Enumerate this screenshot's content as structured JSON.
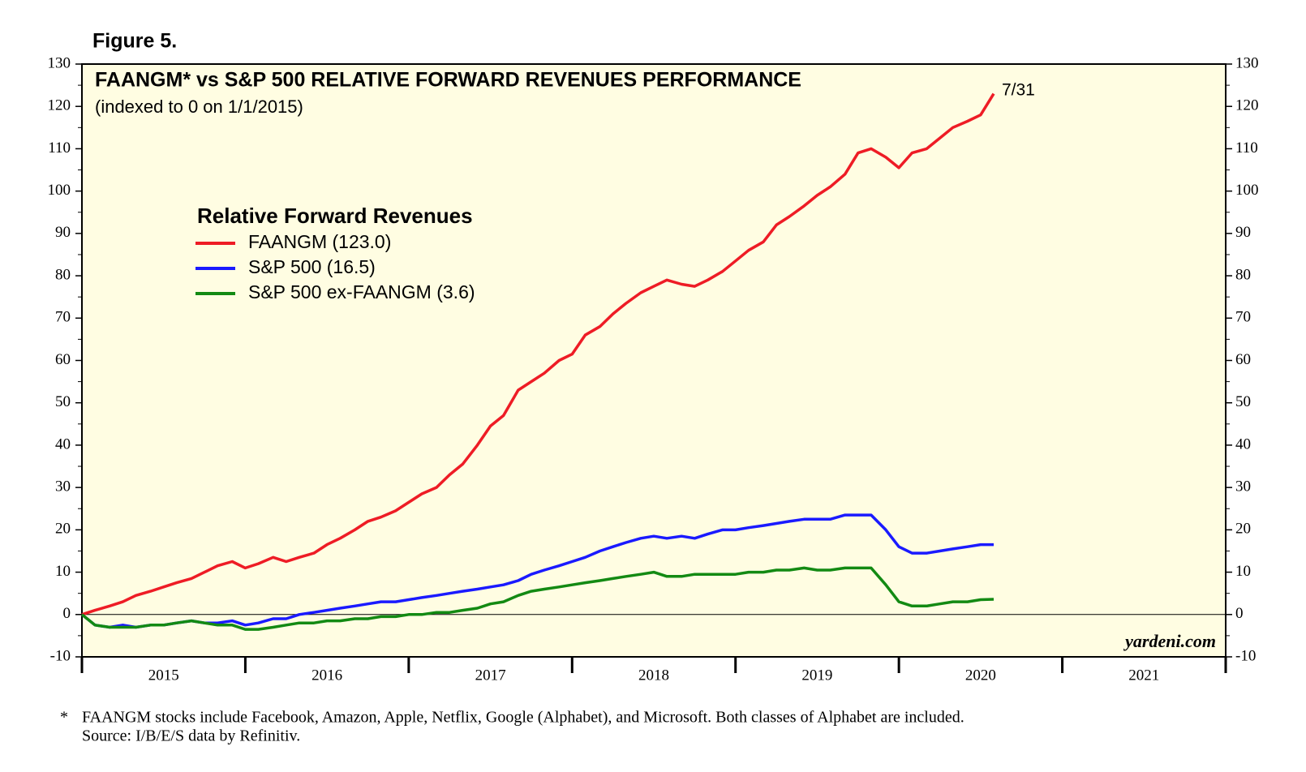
{
  "chart_data": {
    "type": "line",
    "figure_label": "Figure 5.",
    "title": "FAANGM* vs S&P 500 RELATIVE FORWARD REVENUES PERFORMANCE",
    "subtitle": "(indexed to 0 on 1/1/2015)",
    "legend_title": "Relative Forward Revenues",
    "annotation": "7/31",
    "watermark": "yardeni.com",
    "footnote": [
      "*",
      "FAANGM stocks include Facebook, Amazon, Apple, Netflix, Google (Alphabet), and Microsoft. Both classes of Alphabet are included.",
      "Source: I/B/E/S data by Refinitiv."
    ],
    "x": [
      2015,
      2015.08,
      2015.17,
      2015.25,
      2015.33,
      2015.42,
      2015.5,
      2015.58,
      2015.67,
      2015.75,
      2015.83,
      2015.92,
      2016,
      2016.08,
      2016.17,
      2016.25,
      2016.33,
      2016.42,
      2016.5,
      2016.58,
      2016.67,
      2016.75,
      2016.83,
      2016.92,
      2017,
      2017.08,
      2017.17,
      2017.25,
      2017.33,
      2017.42,
      2017.5,
      2017.58,
      2017.67,
      2017.75,
      2017.83,
      2017.92,
      2018,
      2018.08,
      2018.17,
      2018.25,
      2018.33,
      2018.42,
      2018.5,
      2018.58,
      2018.67,
      2018.75,
      2018.83,
      2018.92,
      2019,
      2019.08,
      2019.17,
      2019.25,
      2019.33,
      2019.42,
      2019.5,
      2019.58,
      2019.67,
      2019.75,
      2019.83,
      2019.92,
      2020,
      2020.08,
      2020.17,
      2020.25,
      2020.33,
      2020.42,
      2020.5,
      2020.58
    ],
    "series": [
      {
        "name": "FAANGM (123.0)",
        "color": "#ee1c25",
        "values": [
          0,
          1,
          2,
          3,
          4.5,
          5.5,
          6.5,
          7.5,
          8.5,
          10,
          11.5,
          12.5,
          11,
          12,
          13.5,
          12.5,
          13.5,
          14.5,
          16.5,
          18,
          20,
          22,
          23,
          24.5,
          26.5,
          28.5,
          30,
          33,
          35.5,
          40,
          44.5,
          47,
          53,
          55,
          57,
          60,
          61.5,
          66,
          68,
          71,
          73.5,
          76,
          77.5,
          79,
          78,
          77.5,
          79,
          81,
          83.5,
          86,
          88,
          92,
          94,
          96.5,
          99,
          101,
          104,
          109,
          110,
          108,
          105.5,
          109,
          110,
          112.5,
          115,
          116.5,
          118,
          123
        ]
      },
      {
        "name": "S&P 500 (16.5)",
        "color": "#1a1aff",
        "values": [
          0,
          -2.5,
          -3,
          -2.5,
          -3,
          -2.5,
          -2.5,
          -2,
          -1.5,
          -2,
          -2,
          -1.5,
          -2.5,
          -2,
          -1,
          -1,
          0,
          0.5,
          1,
          1.5,
          2,
          2.5,
          3,
          3,
          3.5,
          4,
          4.5,
          5,
          5.5,
          6,
          6.5,
          7,
          8,
          9.5,
          10.5,
          11.5,
          12.5,
          13.5,
          15,
          16,
          17,
          18,
          18.5,
          18,
          18.5,
          18,
          19,
          20,
          20,
          20.5,
          21,
          21.5,
          22,
          22.5,
          22.5,
          22.5,
          23.5,
          23.5,
          23.5,
          20,
          16,
          14.5,
          14.5,
          15,
          15.5,
          16,
          16.5,
          16.5
        ]
      },
      {
        "name": "S&P 500 ex-FAANGM (3.6)",
        "color": "#138a13",
        "values": [
          0,
          -2.5,
          -3,
          -3,
          -3,
          -2.5,
          -2.5,
          -2,
          -1.5,
          -2,
          -2.5,
          -2.5,
          -3.5,
          -3.5,
          -3,
          -2.5,
          -2,
          -2,
          -1.5,
          -1.5,
          -1,
          -1,
          -0.5,
          -0.5,
          0,
          0,
          0.5,
          0.5,
          1,
          1.5,
          2.5,
          3,
          4.5,
          5.5,
          6,
          6.5,
          7,
          7.5,
          8,
          8.5,
          9,
          9.5,
          10,
          9,
          9,
          9.5,
          9.5,
          9.5,
          9.5,
          10,
          10,
          10.5,
          10.5,
          11,
          10.5,
          10.5,
          11,
          11,
          11,
          7,
          3,
          2,
          2,
          2.5,
          3,
          3,
          3.5,
          3.6
        ]
      }
    ],
    "xlim": [
      2015,
      2022
    ],
    "xticks": [
      2015,
      2016,
      2017,
      2018,
      2019,
      2020,
      2021,
      2022
    ],
    "xtick_labels": [
      {
        "value": 2015.5,
        "label": "2015"
      },
      {
        "value": 2016.5,
        "label": "2016"
      },
      {
        "value": 2017.5,
        "label": "2017"
      },
      {
        "value": 2018.5,
        "label": "2018"
      },
      {
        "value": 2019.5,
        "label": "2019"
      },
      {
        "value": 2020.5,
        "label": "2020"
      },
      {
        "value": 2021.5,
        "label": "2021"
      }
    ],
    "ylim": [
      -10,
      130
    ],
    "yticks": [
      -10,
      0,
      10,
      20,
      30,
      40,
      50,
      60,
      70,
      80,
      90,
      100,
      110,
      120,
      130
    ],
    "grid": false,
    "zero_line": true,
    "background": "#fffde2"
  }
}
